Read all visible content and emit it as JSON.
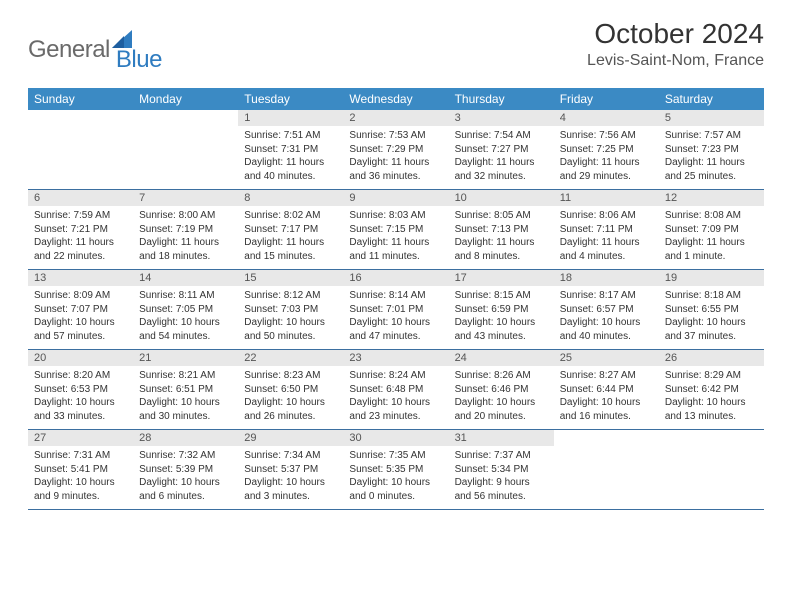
{
  "brand": {
    "part1": "General",
    "part2": "Blue"
  },
  "title": "October 2024",
  "location": "Levis-Saint-Nom, France",
  "colors": {
    "header_bg": "#3b8ac4",
    "header_text": "#ffffff",
    "daynum_bg": "#e8e8e8",
    "row_border": "#3b6fa0",
    "brand_gray": "#6a6a6a",
    "brand_blue": "#2f7cc0"
  },
  "dayHeaders": [
    "Sunday",
    "Monday",
    "Tuesday",
    "Wednesday",
    "Thursday",
    "Friday",
    "Saturday"
  ],
  "weeks": [
    [
      null,
      null,
      {
        "n": "1",
        "sunrise": "7:51 AM",
        "sunset": "7:31 PM",
        "daylight": "11 hours and 40 minutes."
      },
      {
        "n": "2",
        "sunrise": "7:53 AM",
        "sunset": "7:29 PM",
        "daylight": "11 hours and 36 minutes."
      },
      {
        "n": "3",
        "sunrise": "7:54 AM",
        "sunset": "7:27 PM",
        "daylight": "11 hours and 32 minutes."
      },
      {
        "n": "4",
        "sunrise": "7:56 AM",
        "sunset": "7:25 PM",
        "daylight": "11 hours and 29 minutes."
      },
      {
        "n": "5",
        "sunrise": "7:57 AM",
        "sunset": "7:23 PM",
        "daylight": "11 hours and 25 minutes."
      }
    ],
    [
      {
        "n": "6",
        "sunrise": "7:59 AM",
        "sunset": "7:21 PM",
        "daylight": "11 hours and 22 minutes."
      },
      {
        "n": "7",
        "sunrise": "8:00 AM",
        "sunset": "7:19 PM",
        "daylight": "11 hours and 18 minutes."
      },
      {
        "n": "8",
        "sunrise": "8:02 AM",
        "sunset": "7:17 PM",
        "daylight": "11 hours and 15 minutes."
      },
      {
        "n": "9",
        "sunrise": "8:03 AM",
        "sunset": "7:15 PM",
        "daylight": "11 hours and 11 minutes."
      },
      {
        "n": "10",
        "sunrise": "8:05 AM",
        "sunset": "7:13 PM",
        "daylight": "11 hours and 8 minutes."
      },
      {
        "n": "11",
        "sunrise": "8:06 AM",
        "sunset": "7:11 PM",
        "daylight": "11 hours and 4 minutes."
      },
      {
        "n": "12",
        "sunrise": "8:08 AM",
        "sunset": "7:09 PM",
        "daylight": "11 hours and 1 minute."
      }
    ],
    [
      {
        "n": "13",
        "sunrise": "8:09 AM",
        "sunset": "7:07 PM",
        "daylight": "10 hours and 57 minutes."
      },
      {
        "n": "14",
        "sunrise": "8:11 AM",
        "sunset": "7:05 PM",
        "daylight": "10 hours and 54 minutes."
      },
      {
        "n": "15",
        "sunrise": "8:12 AM",
        "sunset": "7:03 PM",
        "daylight": "10 hours and 50 minutes."
      },
      {
        "n": "16",
        "sunrise": "8:14 AM",
        "sunset": "7:01 PM",
        "daylight": "10 hours and 47 minutes."
      },
      {
        "n": "17",
        "sunrise": "8:15 AM",
        "sunset": "6:59 PM",
        "daylight": "10 hours and 43 minutes."
      },
      {
        "n": "18",
        "sunrise": "8:17 AM",
        "sunset": "6:57 PM",
        "daylight": "10 hours and 40 minutes."
      },
      {
        "n": "19",
        "sunrise": "8:18 AM",
        "sunset": "6:55 PM",
        "daylight": "10 hours and 37 minutes."
      }
    ],
    [
      {
        "n": "20",
        "sunrise": "8:20 AM",
        "sunset": "6:53 PM",
        "daylight": "10 hours and 33 minutes."
      },
      {
        "n": "21",
        "sunrise": "8:21 AM",
        "sunset": "6:51 PM",
        "daylight": "10 hours and 30 minutes."
      },
      {
        "n": "22",
        "sunrise": "8:23 AM",
        "sunset": "6:50 PM",
        "daylight": "10 hours and 26 minutes."
      },
      {
        "n": "23",
        "sunrise": "8:24 AM",
        "sunset": "6:48 PM",
        "daylight": "10 hours and 23 minutes."
      },
      {
        "n": "24",
        "sunrise": "8:26 AM",
        "sunset": "6:46 PM",
        "daylight": "10 hours and 20 minutes."
      },
      {
        "n": "25",
        "sunrise": "8:27 AM",
        "sunset": "6:44 PM",
        "daylight": "10 hours and 16 minutes."
      },
      {
        "n": "26",
        "sunrise": "8:29 AM",
        "sunset": "6:42 PM",
        "daylight": "10 hours and 13 minutes."
      }
    ],
    [
      {
        "n": "27",
        "sunrise": "7:31 AM",
        "sunset": "5:41 PM",
        "daylight": "10 hours and 9 minutes."
      },
      {
        "n": "28",
        "sunrise": "7:32 AM",
        "sunset": "5:39 PM",
        "daylight": "10 hours and 6 minutes."
      },
      {
        "n": "29",
        "sunrise": "7:34 AM",
        "sunset": "5:37 PM",
        "daylight": "10 hours and 3 minutes."
      },
      {
        "n": "30",
        "sunrise": "7:35 AM",
        "sunset": "5:35 PM",
        "daylight": "10 hours and 0 minutes."
      },
      {
        "n": "31",
        "sunrise": "7:37 AM",
        "sunset": "5:34 PM",
        "daylight": "9 hours and 56 minutes."
      },
      null,
      null
    ]
  ],
  "labels": {
    "sunrise": "Sunrise:",
    "sunset": "Sunset:",
    "daylight": "Daylight:"
  }
}
